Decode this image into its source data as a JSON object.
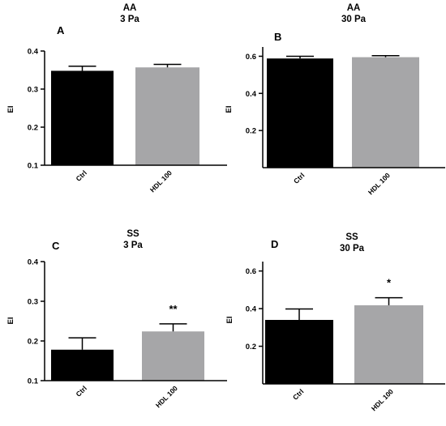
{
  "chart_data": [
    {
      "type": "bar",
      "panel_letter": "A",
      "title": "AA",
      "subtitle": "3 Pa",
      "ylabel": "EI",
      "xlabel": "",
      "categories": [
        "Ctrl",
        "HDL 100"
      ],
      "values": [
        0.348,
        0.357
      ],
      "errors": [
        0.012,
        0.008
      ],
      "colors": [
        "#000000",
        "#a6a6a8"
      ],
      "significance": [
        "",
        ""
      ],
      "ylim": [
        0.1,
        0.4
      ],
      "yticks": [
        "0.1",
        "0.2",
        "0.3",
        "0.4"
      ],
      "grid": false
    },
    {
      "type": "bar",
      "panel_letter": "B",
      "title": "AA",
      "subtitle": "30 Pa",
      "ylabel": "EI",
      "xlabel": "",
      "categories": [
        "Ctrl",
        "HDL 100"
      ],
      "values": [
        0.588,
        0.595
      ],
      "errors": [
        0.012,
        0.008
      ],
      "colors": [
        "#000000",
        "#a6a6a8"
      ],
      "significance": [
        "",
        ""
      ],
      "ylim": [
        0.0,
        0.65
      ],
      "yticks": [
        "0.2",
        "0.4",
        "0.6"
      ],
      "grid": false
    },
    {
      "type": "bar",
      "panel_letter": "C",
      "title": "SS",
      "subtitle": "3 Pa",
      "ylabel": "EI",
      "xlabel": "",
      "categories": [
        "Ctrl",
        "HDL 100"
      ],
      "values": [
        0.178,
        0.224
      ],
      "errors": [
        0.03,
        0.019
      ],
      "colors": [
        "#000000",
        "#a6a6a8"
      ],
      "significance": [
        "",
        "**"
      ],
      "ylim": [
        0.1,
        0.4
      ],
      "yticks": [
        "0.1",
        "0.2",
        "0.3",
        "0.4"
      ],
      "grid": false
    },
    {
      "type": "bar",
      "panel_letter": "D",
      "title": "SS",
      "subtitle": "30 Pa",
      "ylabel": "EI",
      "xlabel": "",
      "categories": [
        "Ctrl",
        "HDL 100"
      ],
      "values": [
        0.34,
        0.418
      ],
      "errors": [
        0.058,
        0.04
      ],
      "colors": [
        "#000000",
        "#a6a6a8"
      ],
      "significance": [
        "",
        "*"
      ],
      "ylim": [
        0.0,
        0.65
      ],
      "yticks": [
        "0.2",
        "0.4",
        "0.6"
      ],
      "grid": false
    }
  ]
}
